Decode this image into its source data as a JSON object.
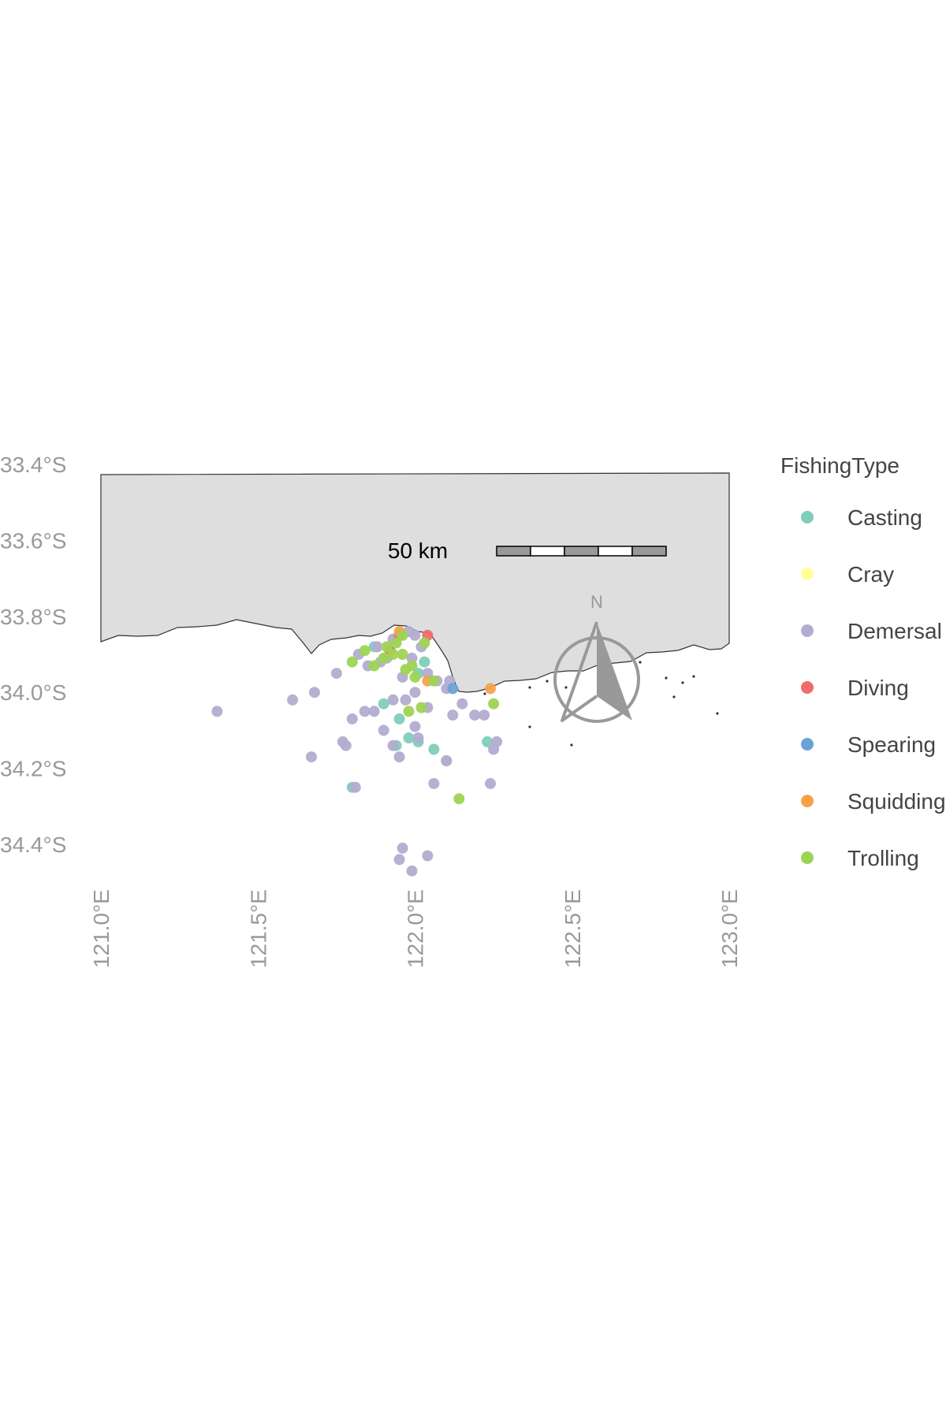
{
  "map": {
    "lon_range": [
      121.0,
      123.0
    ],
    "lat_range": [
      -34.5,
      -33.4
    ],
    "x_ticks": [
      {
        "value": 121.0,
        "label": "121.0°E"
      },
      {
        "value": 121.5,
        "label": "121.5°E"
      },
      {
        "value": 122.0,
        "label": "122.0°E"
      },
      {
        "value": 122.5,
        "label": "122.5°E"
      },
      {
        "value": 123.0,
        "label": "123.0°E"
      }
    ],
    "y_ticks": [
      {
        "value": -33.4,
        "label": "33.4°S"
      },
      {
        "value": -33.6,
        "label": "33.6°S"
      },
      {
        "value": -33.8,
        "label": "33.8°S"
      },
      {
        "value": -34.0,
        "label": "34.0°S"
      },
      {
        "value": -34.2,
        "label": "34.2°S"
      },
      {
        "value": -34.4,
        "label": "34.4°S"
      }
    ],
    "land_color": "#dedede",
    "coastline_color": "#333333",
    "tick_label_color": "#999999",
    "scale_bar": {
      "label": "50 km",
      "segments": 5
    },
    "north_arrow": {
      "label": "N",
      "color": "#999999"
    }
  },
  "legend": {
    "title": "FishingType",
    "items": [
      {
        "key": "Casting",
        "label": "Casting",
        "color": "#7fcdbb"
      },
      {
        "key": "Cray",
        "label": "Cray",
        "color": "#ffff99"
      },
      {
        "key": "Demersal",
        "label": "Demersal",
        "color": "#b3acd1"
      },
      {
        "key": "Diving",
        "label": "Diving",
        "color": "#f26b6b"
      },
      {
        "key": "Spearing",
        "label": "Spearing",
        "color": "#6aa2d6"
      },
      {
        "key": "Squidding",
        "label": "Squidding",
        "color": "#f7a24b"
      },
      {
        "key": "Trolling",
        "label": "Trolling",
        "color": "#9ed454"
      }
    ]
  },
  "chart_data": {
    "type": "scatter",
    "xlabel": "",
    "ylabel": "",
    "xlim": [
      121.0,
      123.0
    ],
    "ylim": [
      -34.5,
      -33.4
    ],
    "series": [
      {
        "name": "Casting",
        "points": [
          [
            121.8,
            -34.25
          ],
          [
            121.9,
            -34.03
          ],
          [
            121.94,
            -34.14
          ],
          [
            121.98,
            -34.12
          ],
          [
            122.01,
            -34.13
          ],
          [
            122.06,
            -34.15
          ],
          [
            122.1,
            -34.18
          ],
          [
            122.23,
            -34.13
          ],
          [
            122.03,
            -33.92
          ],
          [
            121.87,
            -33.88
          ],
          [
            121.95,
            -34.07
          ],
          [
            122.01,
            -33.95
          ]
        ]
      },
      {
        "name": "Demersal",
        "points": [
          [
            121.37,
            -34.05
          ],
          [
            121.61,
            -34.02
          ],
          [
            121.68,
            -34.0
          ],
          [
            121.67,
            -34.17
          ],
          [
            121.78,
            -34.14
          ],
          [
            121.81,
            -34.25
          ],
          [
            121.77,
            -34.13
          ],
          [
            121.8,
            -34.07
          ],
          [
            121.84,
            -34.05
          ],
          [
            121.9,
            -34.1
          ],
          [
            121.93,
            -34.14
          ],
          [
            121.95,
            -34.17
          ],
          [
            121.97,
            -34.02
          ],
          [
            122.0,
            -34.09
          ],
          [
            122.01,
            -34.12
          ],
          [
            122.04,
            -34.04
          ],
          [
            122.06,
            -34.24
          ],
          [
            122.1,
            -34.18
          ],
          [
            122.12,
            -34.06
          ],
          [
            122.15,
            -34.03
          ],
          [
            122.19,
            -34.06
          ],
          [
            122.25,
            -34.15
          ],
          [
            122.24,
            -34.24
          ],
          [
            122.26,
            -34.13
          ],
          [
            121.96,
            -34.41
          ],
          [
            121.95,
            -34.44
          ],
          [
            121.99,
            -34.47
          ],
          [
            122.04,
            -34.43
          ],
          [
            121.75,
            -33.95
          ],
          [
            121.82,
            -33.9
          ],
          [
            121.88,
            -33.88
          ],
          [
            121.93,
            -33.86
          ],
          [
            121.98,
            -33.84
          ],
          [
            122.0,
            -33.85
          ],
          [
            122.02,
            -33.88
          ],
          [
            122.07,
            -33.97
          ],
          [
            122.1,
            -33.99
          ],
          [
            121.85,
            -33.93
          ],
          [
            121.91,
            -33.91
          ],
          [
            121.99,
            -33.91
          ],
          [
            122.11,
            -33.97
          ],
          [
            121.87,
            -34.05
          ],
          [
            121.93,
            -34.02
          ],
          [
            122.22,
            -34.06
          ],
          [
            121.96,
            -33.96
          ],
          [
            122.0,
            -34.0
          ],
          [
            121.89,
            -33.92
          ],
          [
            122.04,
            -33.95
          ]
        ]
      },
      {
        "name": "Diving",
        "points": [
          [
            122.04,
            -33.85
          ],
          [
            121.92,
            -33.89
          ],
          [
            121.95,
            -33.85
          ]
        ]
      },
      {
        "name": "Spearing",
        "points": [
          [
            122.12,
            -33.99
          ]
        ]
      },
      {
        "name": "Squidding",
        "points": [
          [
            122.24,
            -33.99
          ],
          [
            121.95,
            -33.84
          ],
          [
            122.04,
            -33.97
          ]
        ]
      },
      {
        "name": "Trolling",
        "points": [
          [
            121.8,
            -33.92
          ],
          [
            121.84,
            -33.89
          ],
          [
            121.9,
            -33.91
          ],
          [
            121.93,
            -33.9
          ],
          [
            121.96,
            -33.85
          ],
          [
            121.99,
            -33.93
          ],
          [
            122.03,
            -33.87
          ],
          [
            121.97,
            -33.94
          ],
          [
            122.0,
            -33.96
          ],
          [
            122.06,
            -33.97
          ],
          [
            121.98,
            -34.05
          ],
          [
            122.02,
            -34.04
          ],
          [
            122.14,
            -34.28
          ],
          [
            122.25,
            -34.03
          ],
          [
            121.87,
            -33.93
          ],
          [
            121.94,
            -33.87
          ],
          [
            121.91,
            -33.88
          ],
          [
            121.96,
            -33.9
          ]
        ]
      }
    ],
    "legend_position": "right",
    "grid": false
  }
}
